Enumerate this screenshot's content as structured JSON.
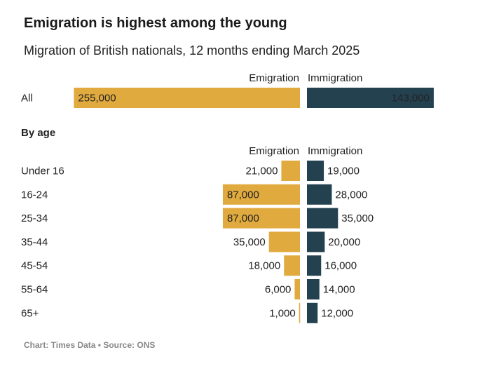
{
  "chart_data": {
    "type": "bar",
    "title": "Emigration is highest among the young",
    "subtitle": "Migration of British nationals, 12 months ending March 2025",
    "section_label": "By age",
    "source": "Chart: Times Data • Source: ONS",
    "series_labels": [
      "Emigration",
      "Immigration"
    ],
    "colors": {
      "emigration": "#E0AA3E",
      "immigration": "#24414F"
    },
    "total": {
      "category": "All",
      "emigration": 255000,
      "immigration": 143000,
      "emigration_label": "255,000",
      "immigration_label": "143,000"
    },
    "categories": [
      "Under 16",
      "16-24",
      "25-34",
      "35-44",
      "45-54",
      "55-64",
      "65+"
    ],
    "series": [
      {
        "name": "Emigration",
        "values": [
          21000,
          87000,
          87000,
          35000,
          18000,
          6000,
          1000
        ],
        "labels": [
          "21,000",
          "87,000",
          "87,000",
          "35,000",
          "18,000",
          "6,000",
          "1,000"
        ]
      },
      {
        "name": "Immigration",
        "values": [
          19000,
          28000,
          35000,
          20000,
          16000,
          14000,
          12000
        ],
        "labels": [
          "19,000",
          "28,000",
          "35,000",
          "20,000",
          "16,000",
          "14,000",
          "12,000"
        ]
      }
    ]
  }
}
